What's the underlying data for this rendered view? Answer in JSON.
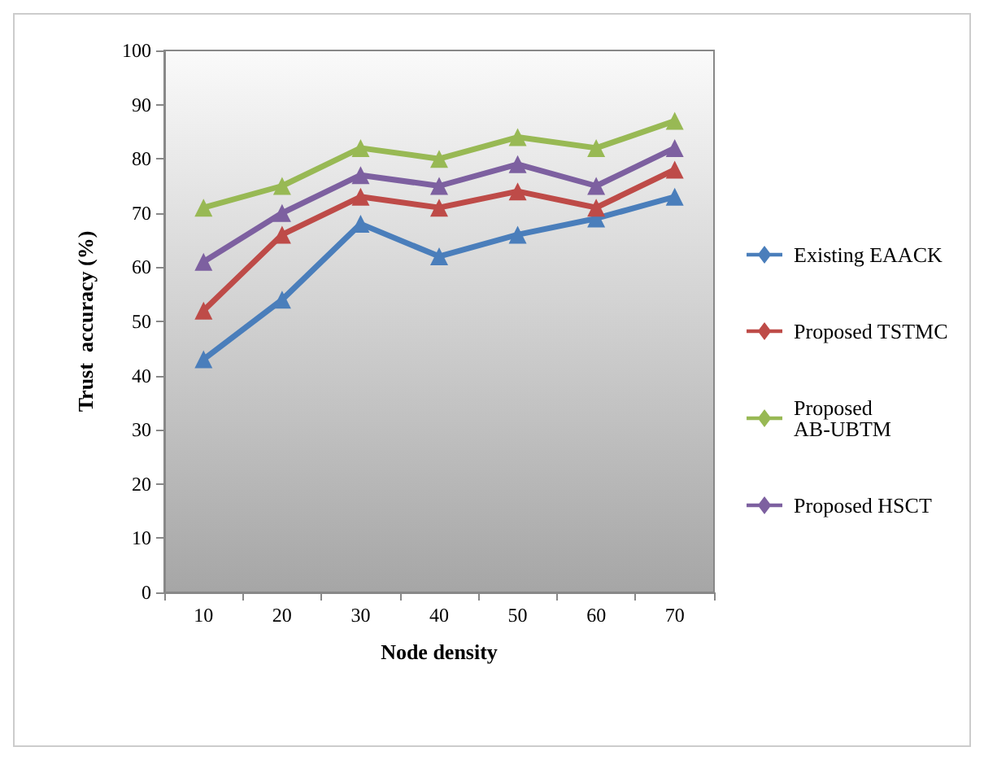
{
  "chart_data": {
    "type": "line",
    "xlabel": "Node density",
    "ylabel": "Trust  accuracy (%)",
    "categories": [
      "10",
      "20",
      "30",
      "40",
      "50",
      "60",
      "70"
    ],
    "series": [
      {
        "name": "Existing EAACK",
        "color": "#4a7ebb",
        "values": [
          43,
          54,
          68,
          62,
          66,
          69,
          73
        ]
      },
      {
        "name": "Proposed TSTMC",
        "color": "#be4b48",
        "values": [
          52,
          66,
          73,
          71,
          74,
          71,
          78
        ]
      },
      {
        "name": "Proposed AB-UBTM",
        "color": "#98b954",
        "values": [
          71,
          75,
          82,
          80,
          84,
          82,
          87
        ]
      },
      {
        "name": "Proposed HSCT",
        "color": "#7d60a0",
        "values": [
          61,
          70,
          77,
          75,
          79,
          75,
          82
        ]
      }
    ],
    "ylim": [
      0,
      100
    ],
    "yticks": [
      0,
      10,
      20,
      30,
      40,
      50,
      60,
      70,
      80,
      90,
      100
    ],
    "grid": false,
    "legend": "right",
    "marker": "triangle",
    "line_style": "solid"
  }
}
